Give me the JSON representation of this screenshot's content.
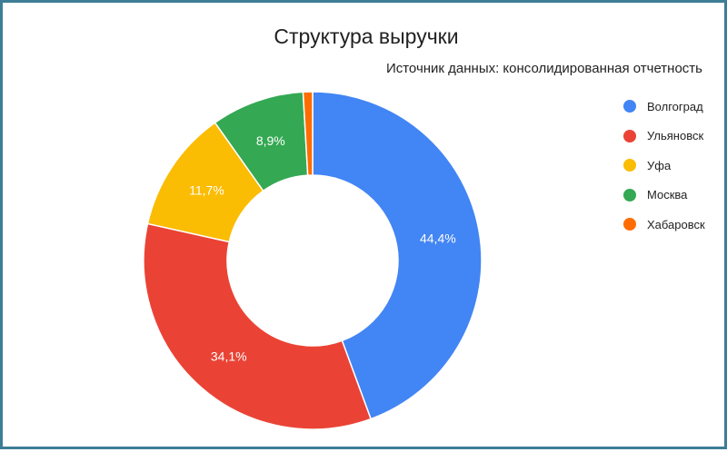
{
  "chart_data": {
    "type": "pie",
    "donut": true,
    "title": "Структура выручки",
    "subtitle": "Источник данных: консолидированная отчетность",
    "legend_position": "right",
    "slices": [
      {
        "label": "Волгоград",
        "value": 44.4,
        "value_label": "44,4%",
        "color": "#4285f4"
      },
      {
        "label": "Ульяновск",
        "value": 34.1,
        "value_label": "34,1%",
        "color": "#ea4335"
      },
      {
        "label": "Уфа",
        "value": 11.7,
        "value_label": "11,7%",
        "color": "#fbbc04"
      },
      {
        "label": "Москва",
        "value": 8.9,
        "value_label": "8,9%",
        "color": "#34a853"
      },
      {
        "label": "Хабаровск",
        "value": 0.9,
        "value_label": "",
        "color": "#ff6d01"
      }
    ]
  }
}
